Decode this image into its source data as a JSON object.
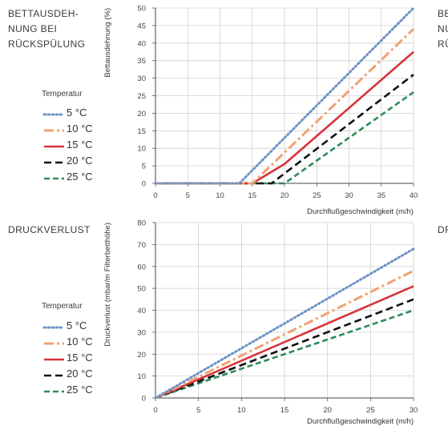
{
  "panels": [
    {
      "title": "BETTAUSDEH-\nNUNG BEI\nRÜCKSPÜLUNG",
      "cut_text": "BE\nNU\nRÜ",
      "legend_title": "Temperatur"
    },
    {
      "title": "DRUCKVERLUST",
      "cut_text": "DR",
      "legend_title": "Temperatur"
    }
  ],
  "legend_labels": [
    "5 °C",
    "10 °C",
    "15 °C",
    "20 °C",
    "25 °C"
  ],
  "series_style": [
    {
      "color": "#6e93c8",
      "dash": "dot"
    },
    {
      "color": "#f0a172",
      "dash": "dashdot"
    },
    {
      "color": "#d6343a",
      "dash": "solid"
    },
    {
      "color": "#111111",
      "dash": "dash"
    },
    {
      "color": "#2f8a57",
      "dash": "shortdash"
    }
  ],
  "chart_data": [
    {
      "type": "line",
      "xlabel": "Durchflußgeschwindigkeit (m/h)",
      "ylabel": "Bettausdehnung (%)",
      "xlim": [
        0,
        40
      ],
      "ylim": [
        0,
        50
      ],
      "xticks": [
        0,
        5,
        10,
        15,
        20,
        25,
        30,
        35,
        40
      ],
      "yticks": [
        0,
        5,
        10,
        15,
        20,
        25,
        30,
        35,
        40,
        45,
        50
      ],
      "grid": true,
      "series": [
        {
          "name": "5 °C",
          "points": [
            [
              0,
              0
            ],
            [
              13,
              0
            ],
            [
              40,
              50
            ]
          ]
        },
        {
          "name": "10 °C",
          "points": [
            [
              0,
              0
            ],
            [
              15,
              0
            ],
            [
              40,
              44
            ]
          ]
        },
        {
          "name": "15 °C",
          "points": [
            [
              0,
              0
            ],
            [
              15,
              0
            ],
            [
              20,
              5.5
            ],
            [
              40,
              37.5
            ]
          ]
        },
        {
          "name": "20 °C",
          "points": [
            [
              0,
              0
            ],
            [
              18,
              0
            ],
            [
              40,
              31
            ]
          ]
        },
        {
          "name": "25 °C",
          "points": [
            [
              0,
              0
            ],
            [
              20,
              0
            ],
            [
              40,
              26
            ]
          ]
        }
      ]
    },
    {
      "type": "line",
      "xlabel": "Durchflußgeschwindigkeit (m/h)",
      "ylabel": "Druckverlust (mbar/m Filterbetthöhe)",
      "xlim": [
        0,
        30
      ],
      "ylim": [
        0,
        80
      ],
      "xticks": [
        0,
        5,
        10,
        15,
        20,
        25,
        30
      ],
      "yticks": [
        0,
        10,
        20,
        30,
        40,
        50,
        60,
        70,
        80
      ],
      "grid": true,
      "series": [
        {
          "name": "5 °C",
          "points": [
            [
              0,
              0
            ],
            [
              30,
              68
            ]
          ]
        },
        {
          "name": "10 °C",
          "points": [
            [
              0,
              0
            ],
            [
              30,
              58
            ]
          ]
        },
        {
          "name": "15 °C",
          "points": [
            [
              0,
              0
            ],
            [
              30,
              51
            ]
          ]
        },
        {
          "name": "20 °C",
          "points": [
            [
              0,
              0
            ],
            [
              30,
              45
            ]
          ]
        },
        {
          "name": "25 °C",
          "points": [
            [
              0,
              0
            ],
            [
              30,
              40
            ]
          ]
        }
      ]
    }
  ]
}
